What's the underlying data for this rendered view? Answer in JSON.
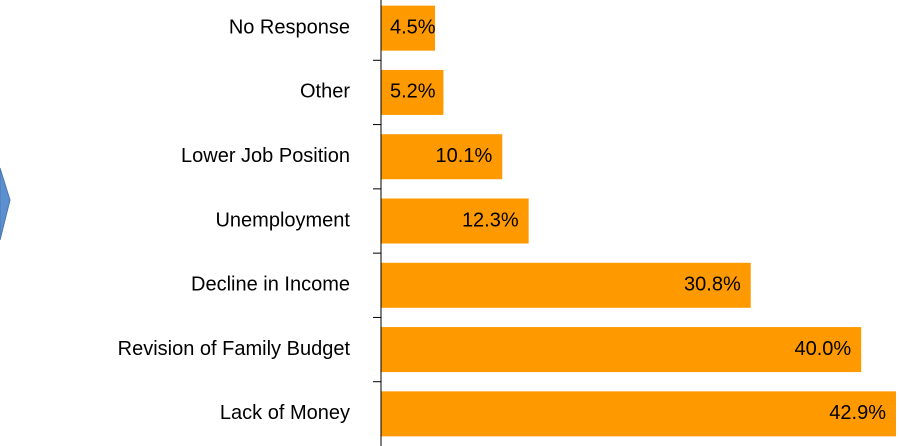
{
  "chart_data": {
    "type": "barh",
    "categories": [
      "No Response",
      "Other",
      "Lower Job Position",
      "Unemployment",
      "Decline in Income",
      "Revision of Family Budget",
      "Lack of Money"
    ],
    "values": [
      4.5,
      5.2,
      10.1,
      12.3,
      30.8,
      40.0,
      42.9
    ],
    "value_labels": [
      "4.5%",
      "5.2%",
      "10.1%",
      "12.3%",
      "30.8%",
      "40.0%",
      "42.9%"
    ],
    "color": "#ff9900"
  }
}
